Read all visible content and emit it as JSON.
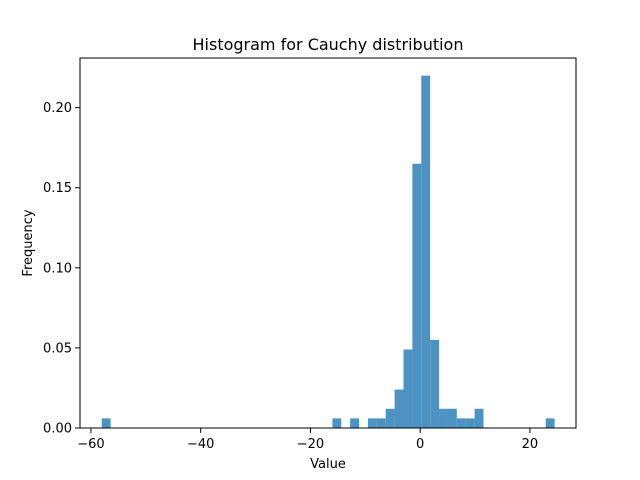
{
  "chart_data": {
    "type": "bar",
    "title": "Histogram for Cauchy distribution",
    "xlabel": "Value",
    "ylabel": "Frequency",
    "xlim": [
      -62.0,
      28.4
    ],
    "ylim": [
      0,
      0.231
    ],
    "xticks": [
      -60,
      -40,
      -20,
      0,
      20
    ],
    "xtick_labels": [
      "−60",
      "−40",
      "−20",
      "0",
      "20"
    ],
    "yticks": [
      0.0,
      0.05,
      0.1,
      0.15,
      0.2
    ],
    "ytick_labels": [
      "0.00",
      "0.05",
      "0.10",
      "0.15",
      "0.20"
    ],
    "bar_color": "#1f77b4",
    "bar_opacity": 0.8,
    "grid": false,
    "bins": [
      {
        "x0": -58.04,
        "x1": -56.42,
        "value": 0.006
      },
      {
        "x0": -16.0,
        "x1": -14.38,
        "value": 0.006
      },
      {
        "x0": -12.76,
        "x1": -11.14,
        "value": 0.006
      },
      {
        "x0": -9.52,
        "x1": -7.9,
        "value": 0.006
      },
      {
        "x0": -7.9,
        "x1": -6.28,
        "value": 0.006
      },
      {
        "x0": -6.28,
        "x1": -4.66,
        "value": 0.012
      },
      {
        "x0": -4.66,
        "x1": -3.04,
        "value": 0.024
      },
      {
        "x0": -3.04,
        "x1": -1.42,
        "value": 0.049
      },
      {
        "x0": -1.42,
        "x1": 0.2,
        "value": 0.165
      },
      {
        "x0": 0.2,
        "x1": 1.82,
        "value": 0.22
      },
      {
        "x0": 1.82,
        "x1": 3.44,
        "value": 0.055
      },
      {
        "x0": 3.44,
        "x1": 5.06,
        "value": 0.012
      },
      {
        "x0": 5.06,
        "x1": 6.68,
        "value": 0.012
      },
      {
        "x0": 6.68,
        "x1": 8.3,
        "value": 0.006
      },
      {
        "x0": 8.3,
        "x1": 9.92,
        "value": 0.006
      },
      {
        "x0": 9.92,
        "x1": 11.54,
        "value": 0.012
      },
      {
        "x0": 22.88,
        "x1": 24.5,
        "value": 0.006
      }
    ]
  }
}
